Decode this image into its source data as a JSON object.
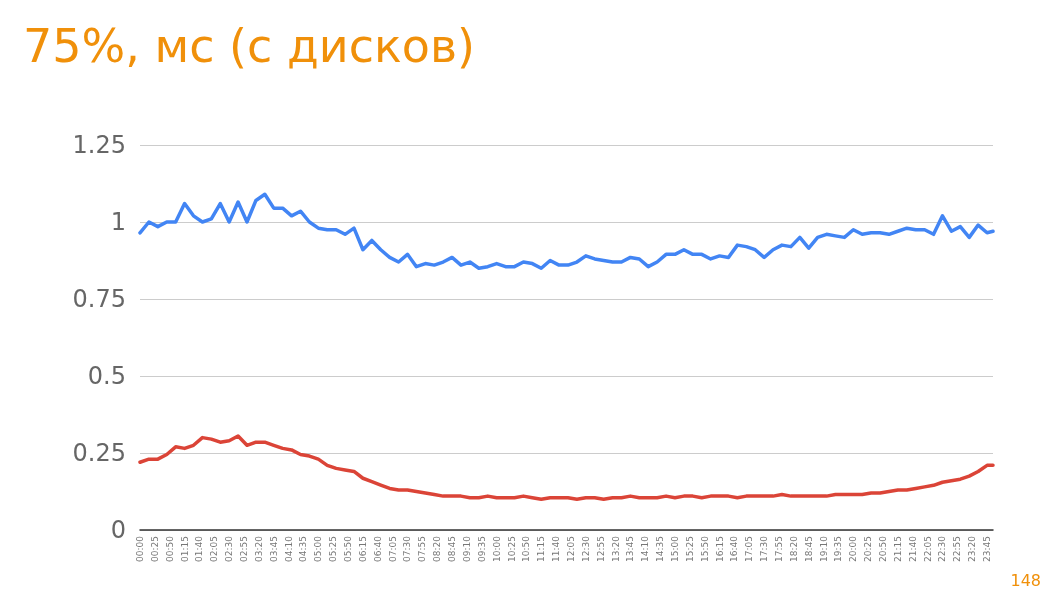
{
  "chart_data": {
    "type": "line",
    "title": "75%, мс (с дисков)",
    "x": [
      0,
      0.25,
      0.5,
      0.75,
      1,
      1.25,
      1.5,
      1.75,
      2,
      2.25,
      2.5,
      2.75,
      3,
      3.25,
      3.5,
      3.75,
      4,
      4.25,
      4.5,
      4.75,
      5,
      5.25,
      5.5,
      5.75,
      6,
      6.25,
      6.5,
      6.75,
      7,
      7.25,
      7.5,
      7.75,
      8,
      8.25,
      8.5,
      8.75,
      9,
      9.25,
      9.5,
      9.75,
      10,
      10.25,
      10.5,
      10.75,
      11,
      11.25,
      11.5,
      11.75,
      12,
      12.25,
      12.5,
      12.75,
      13,
      13.25,
      13.5,
      13.75,
      14,
      14.25,
      14.5,
      14.75,
      15,
      15.25,
      15.5,
      15.75,
      16,
      16.25,
      16.5,
      16.75,
      17,
      17.25,
      17.5,
      17.75,
      18,
      18.25,
      18.5,
      18.75,
      19,
      19.25,
      19.5,
      19.75,
      20,
      20.25,
      20.5,
      20.75,
      21,
      21.25,
      21.5,
      21.75,
      22,
      22.25,
      22.5,
      22.75,
      23,
      23.25,
      23.5,
      23.75,
      23.9167
    ],
    "series": [
      {
        "color": "#4285f4",
        "values": [
          0.965,
          1.0,
          0.985,
          1.0,
          1.0,
          1.06,
          1.02,
          1.0,
          1.01,
          1.06,
          1.0,
          1.065,
          1.0,
          1.07,
          1.09,
          1.045,
          1.045,
          1.02,
          1.035,
          1.0,
          0.98,
          0.975,
          0.975,
          0.96,
          0.98,
          0.91,
          0.94,
          0.91,
          0.885,
          0.87,
          0.895,
          0.855,
          0.865,
          0.86,
          0.87,
          0.885,
          0.86,
          0.87,
          0.85,
          0.855,
          0.865,
          0.855,
          0.855,
          0.87,
          0.865,
          0.85,
          0.875,
          0.86,
          0.86,
          0.87,
          0.89,
          0.88,
          0.875,
          0.87,
          0.87,
          0.885,
          0.88,
          0.855,
          0.87,
          0.895,
          0.895,
          0.91,
          0.895,
          0.895,
          0.88,
          0.89,
          0.885,
          0.925,
          0.92,
          0.91,
          0.885,
          0.91,
          0.925,
          0.92,
          0.95,
          0.915,
          0.95,
          0.96,
          0.955,
          0.95,
          0.975,
          0.96,
          0.965,
          0.965,
          0.96,
          0.97,
          0.98,
          0.975,
          0.975,
          0.96,
          1.02,
          0.97,
          0.985,
          0.95,
          0.99,
          0.965,
          0.97
        ]
      },
      {
        "color": "#db4437",
        "values": [
          0.22,
          0.23,
          0.23,
          0.245,
          0.27,
          0.265,
          0.275,
          0.3,
          0.295,
          0.285,
          0.29,
          0.305,
          0.275,
          0.285,
          0.285,
          0.275,
          0.265,
          0.26,
          0.245,
          0.24,
          0.23,
          0.21,
          0.2,
          0.195,
          0.19,
          0.168,
          0.157,
          0.146,
          0.135,
          0.13,
          0.13,
          0.125,
          0.12,
          0.115,
          0.11,
          0.11,
          0.11,
          0.105,
          0.105,
          0.11,
          0.105,
          0.105,
          0.105,
          0.11,
          0.105,
          0.1,
          0.105,
          0.105,
          0.105,
          0.1,
          0.105,
          0.105,
          0.1,
          0.105,
          0.105,
          0.11,
          0.105,
          0.105,
          0.105,
          0.11,
          0.105,
          0.11,
          0.11,
          0.105,
          0.11,
          0.11,
          0.11,
          0.105,
          0.11,
          0.11,
          0.11,
          0.11,
          0.115,
          0.11,
          0.11,
          0.11,
          0.11,
          0.11,
          0.115,
          0.115,
          0.115,
          0.115,
          0.12,
          0.12,
          0.125,
          0.13,
          0.13,
          0.135,
          0.14,
          0.145,
          0.155,
          0.16,
          0.165,
          0.175,
          0.19,
          0.21,
          0.21
        ]
      }
    ],
    "xlim": [
      0,
      23.9167
    ],
    "xticks": [
      {
        "value": 0,
        "label": "00:00"
      },
      {
        "value": 0.4167,
        "label": "00:25"
      },
      {
        "value": 0.8333,
        "label": "00:50"
      },
      {
        "value": 1.25,
        "label": "01:15"
      },
      {
        "value": 1.6667,
        "label": "01:40"
      },
      {
        "value": 2.0833,
        "label": "02:05"
      },
      {
        "value": 2.5,
        "label": "02:30"
      },
      {
        "value": 2.9167,
        "label": "02:55"
      },
      {
        "value": 3.3333,
        "label": "03:20"
      },
      {
        "value": 3.75,
        "label": "03:45"
      },
      {
        "value": 4.1667,
        "label": "04:10"
      },
      {
        "value": 4.5833,
        "label": "04:35"
      },
      {
        "value": 5,
        "label": "05:00"
      },
      {
        "value": 5.4167,
        "label": "05:25"
      },
      {
        "value": 5.8333,
        "label": "05:50"
      },
      {
        "value": 6.25,
        "label": "06:15"
      },
      {
        "value": 6.6667,
        "label": "06:40"
      },
      {
        "value": 7.0833,
        "label": "07:05"
      },
      {
        "value": 7.5,
        "label": "07:30"
      },
      {
        "value": 7.9167,
        "label": "07:55"
      },
      {
        "value": 8.3333,
        "label": "08:20"
      },
      {
        "value": 8.75,
        "label": "08:45"
      },
      {
        "value": 9.1667,
        "label": "09:10"
      },
      {
        "value": 9.5833,
        "label": "09:35"
      },
      {
        "value": 10,
        "label": "10:00"
      },
      {
        "value": 10.4167,
        "label": "10:25"
      },
      {
        "value": 10.8333,
        "label": "10:50"
      },
      {
        "value": 11.25,
        "label": "11:15"
      },
      {
        "value": 11.6667,
        "label": "11:40"
      },
      {
        "value": 12.0833,
        "label": "12:05"
      },
      {
        "value": 12.5,
        "label": "12:30"
      },
      {
        "value": 12.9167,
        "label": "12:55"
      },
      {
        "value": 13.3333,
        "label": "13:20"
      },
      {
        "value": 13.75,
        "label": "13:45"
      },
      {
        "value": 14.1667,
        "label": "14:10"
      },
      {
        "value": 14.5833,
        "label": "14:35"
      },
      {
        "value": 15,
        "label": "15:00"
      },
      {
        "value": 15.4167,
        "label": "15:25"
      },
      {
        "value": 15.8333,
        "label": "15:50"
      },
      {
        "value": 16.25,
        "label": "16:15"
      },
      {
        "value": 16.6667,
        "label": "16:40"
      },
      {
        "value": 17.0833,
        "label": "17:05"
      },
      {
        "value": 17.5,
        "label": "17:30"
      },
      {
        "value": 17.9167,
        "label": "17:55"
      },
      {
        "value": 18.3333,
        "label": "18:20"
      },
      {
        "value": 18.75,
        "label": "18:45"
      },
      {
        "value": 19.1667,
        "label": "19:10"
      },
      {
        "value": 19.5833,
        "label": "19:35"
      },
      {
        "value": 20,
        "label": "20:00"
      },
      {
        "value": 20.4167,
        "label": "20:25"
      },
      {
        "value": 20.8333,
        "label": "20:50"
      },
      {
        "value": 21.25,
        "label": "21:15"
      },
      {
        "value": 21.6667,
        "label": "21:40"
      },
      {
        "value": 22.0833,
        "label": "22:05"
      },
      {
        "value": 22.5,
        "label": "22:30"
      },
      {
        "value": 22.9167,
        "label": "22:55"
      },
      {
        "value": 23.3333,
        "label": "23:20"
      },
      {
        "value": 23.75,
        "label": "23:45"
      }
    ],
    "ylim": [
      0,
      1.25
    ],
    "yticks": [
      0,
      0.25,
      0.5,
      0.75,
      1,
      1.25
    ],
    "grid": "y",
    "marker": "none",
    "line_style": "solid",
    "annotations": [
      "148"
    ]
  }
}
